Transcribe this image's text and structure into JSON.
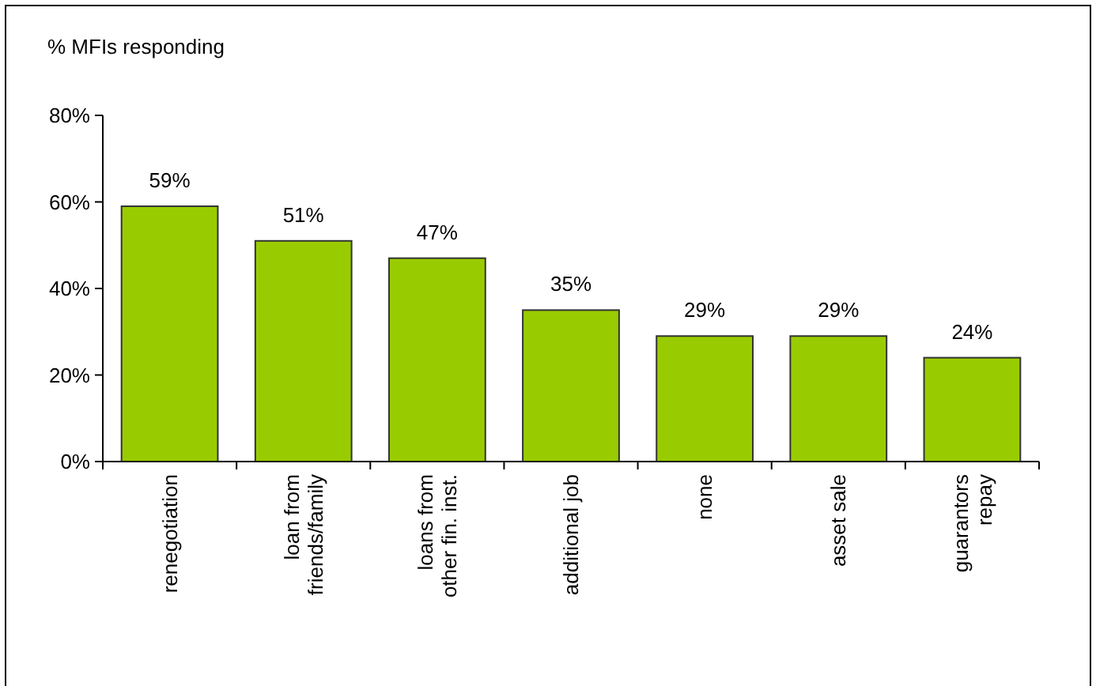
{
  "chart_data": {
    "type": "bar",
    "ylabel": "% MFIs responding",
    "categories": [
      "renegotiation",
      "loan from\nfriends/family",
      "loans from\nother fin. inst.",
      "additional job",
      "none",
      "asset sale",
      "guarantors\nrepay"
    ],
    "values": [
      59,
      51,
      47,
      35,
      29,
      29,
      24
    ],
    "value_labels": [
      "59%",
      "51%",
      "47%",
      "35%",
      "29%",
      "29%",
      "24%"
    ],
    "color": "#99cc00",
    "ylim": [
      0,
      80
    ],
    "yticks": [
      {
        "value": 0,
        "label": "0%"
      },
      {
        "value": 20,
        "label": "20%"
      },
      {
        "value": 40,
        "label": "40%"
      },
      {
        "value": 60,
        "label": "60%"
      },
      {
        "value": 80,
        "label": "80%"
      }
    ],
    "grid": false
  }
}
